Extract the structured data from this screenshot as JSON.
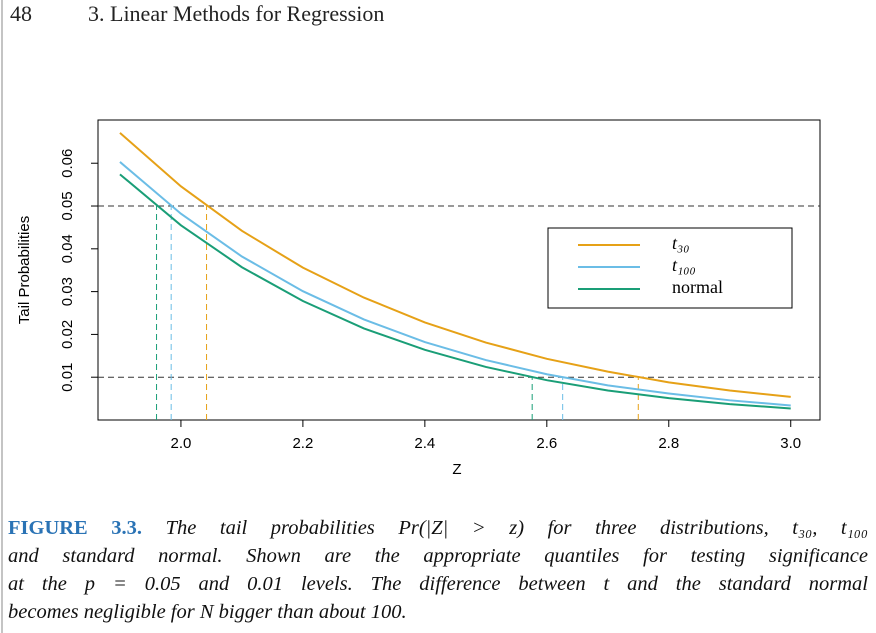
{
  "header": {
    "page_number": "48",
    "chapter": "3. Linear Methods for Regression"
  },
  "chart_data": {
    "type": "line",
    "x_label": "Z",
    "y_label": "Tail Probabilities",
    "x": [
      1.9,
      2.0,
      2.1,
      2.2,
      2.3,
      2.4,
      2.5,
      2.6,
      2.7,
      2.8,
      2.9,
      3.0
    ],
    "series": [
      {
        "name": "t₃₀",
        "color": "#e6a117",
        "values": [
          0.0671,
          0.0546,
          0.0442,
          0.0356,
          0.0286,
          0.0228,
          0.0181,
          0.0143,
          0.0113,
          0.0088,
          0.0069,
          0.0054
        ],
        "quantiles": [
          2.042,
          2.75
        ]
      },
      {
        "name": "t₁₀₀",
        "color": "#6bbde6",
        "values": [
          0.0603,
          0.0482,
          0.0382,
          0.0301,
          0.0235,
          0.0182,
          0.014,
          0.0107,
          0.0081,
          0.0062,
          0.0046,
          0.0034
        ],
        "quantiles": [
          1.984,
          2.626
        ]
      },
      {
        "name": "normal",
        "color": "#1a9e77",
        "values": [
          0.0574,
          0.0455,
          0.0357,
          0.0278,
          0.0214,
          0.0164,
          0.0124,
          0.0093,
          0.0069,
          0.0051,
          0.0037,
          0.0027
        ],
        "quantiles": [
          1.96,
          2.576
        ]
      }
    ],
    "levels": [
      0.05,
      0.01
    ],
    "xlim": [
      1.864,
      3.048
    ],
    "ylim": [
      0,
      0.0701
    ],
    "xticks": [
      {
        "value": 2,
        "label": "2.0"
      },
      {
        "value": 2.2,
        "label": "2.2"
      },
      {
        "value": 2.4,
        "label": "2.4"
      },
      {
        "value": 2.6,
        "label": "2.6"
      },
      {
        "value": 2.8,
        "label": "2.8"
      },
      {
        "value": 3,
        "label": "3.0"
      }
    ],
    "yticks": [
      0.01,
      0.02,
      0.03,
      0.04,
      0.05,
      0.06
    ],
    "legend": "right"
  },
  "caption": {
    "label": "FIGURE 3.3.",
    "lines": [
      "The tail probabilities Pr(|Z| > z) for three distributions, t₃₀, t₁₀₀",
      "and standard normal. Shown are the appropriate quantiles for testing significance",
      "at the p = 0.05 and 0.01 levels. The difference between t and the standard normal",
      "becomes negligible for N bigger than about 100."
    ]
  }
}
